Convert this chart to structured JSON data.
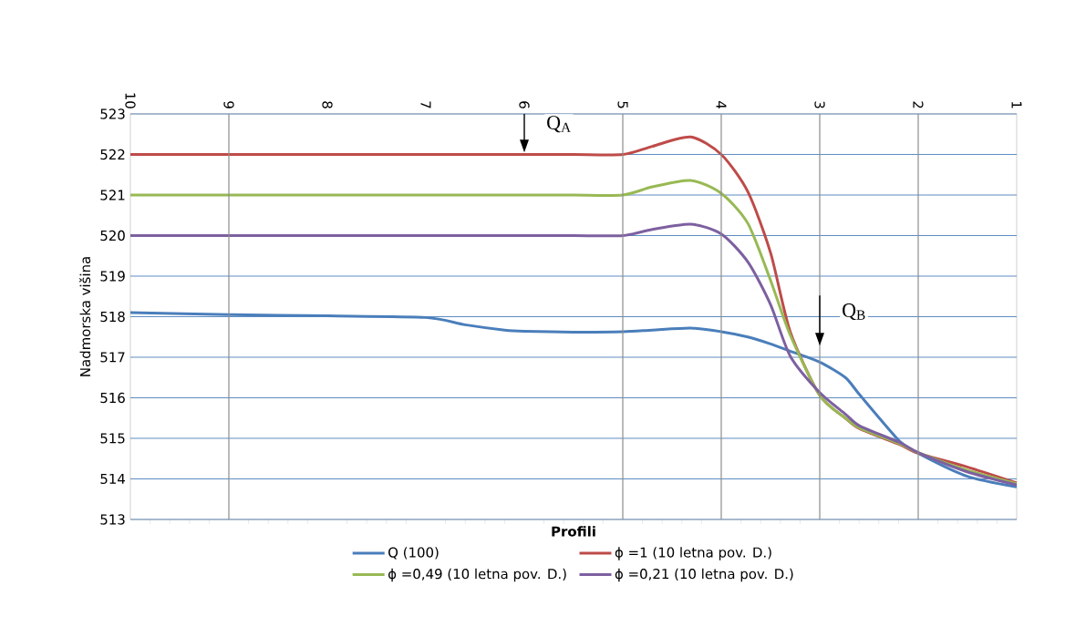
{
  "chart_data": {
    "type": "line",
    "xlabel": "Profili",
    "ylabel": "Nadmorska višina",
    "x": [
      10,
      9,
      8,
      7,
      6.6,
      6.2,
      6,
      5.5,
      5,
      4.7,
      4.31,
      4,
      3.73,
      3.5,
      3.3,
      3,
      2.74,
      2.59,
      2.19,
      2,
      1.51,
      1
    ],
    "series": [
      {
        "name": "Q (100)",
        "color": "#4a7ebb",
        "values": [
          518.1,
          518.05,
          518.02,
          517.98,
          517.8,
          517.67,
          517.64,
          517.62,
          517.63,
          517.67,
          517.72,
          517.63,
          517.5,
          517.33,
          517.15,
          516.88,
          516.5,
          516.06,
          514.93,
          514.63,
          514.07,
          513.8
        ]
      },
      {
        "name": "ϕ =1 (10 letna pov. D.)",
        "color": "#be4b48",
        "values": [
          522,
          522,
          522,
          522,
          522,
          522,
          522,
          522,
          522,
          522.2,
          522.43,
          522.0,
          521.08,
          519.58,
          517.63,
          516.06,
          515.5,
          515.23,
          514.85,
          514.63,
          514.3,
          513.9
        ]
      },
      {
        "name": "ϕ =0,49 (10 letna pov. D.)",
        "color": "#98b954",
        "values": [
          521,
          521,
          521,
          521,
          521,
          521,
          521,
          521,
          521,
          521.2,
          521.36,
          521.04,
          520.3,
          518.9,
          517.55,
          516.06,
          515.5,
          515.25,
          514.87,
          514.65,
          514.22,
          513.88
        ]
      },
      {
        "name": "ϕ =0,21 (10 letna pov. D.)",
        "color": "#7d60a0",
        "values": [
          520,
          520,
          520,
          520,
          520,
          520,
          520,
          520,
          520,
          520.15,
          520.28,
          520.04,
          519.35,
          518.3,
          517.03,
          516.13,
          515.6,
          515.3,
          514.9,
          514.65,
          514.18,
          513.85
        ]
      }
    ],
    "xlim": [
      10,
      1
    ],
    "xticks": [
      10,
      9,
      8,
      7,
      6,
      5,
      4,
      3,
      2,
      1
    ],
    "ylim": [
      513,
      523
    ],
    "yticks": [
      513,
      514,
      515,
      516,
      517,
      518,
      519,
      520,
      521,
      522,
      523
    ],
    "grid": "y",
    "legend": "bottom",
    "line_style": "solid",
    "marker": "none",
    "ref_lines": [
      {
        "axis": "x",
        "value": 9,
        "color": "#8c8c8c"
      },
      {
        "axis": "x",
        "value": 5,
        "color": "#8c8c8c"
      },
      {
        "axis": "x",
        "value": 4,
        "color": "#8c8c8c"
      },
      {
        "axis": "x",
        "value": 3,
        "color": "#8c8c8c"
      },
      {
        "axis": "x",
        "value": 2,
        "color": "#8c8c8c"
      }
    ],
    "annotations": [
      {
        "text": "Q$_{A}$",
        "x": 6,
        "y": 522
      },
      {
        "text": "Q$_{B}$",
        "x": 3,
        "y": 516.88
      }
    ]
  }
}
